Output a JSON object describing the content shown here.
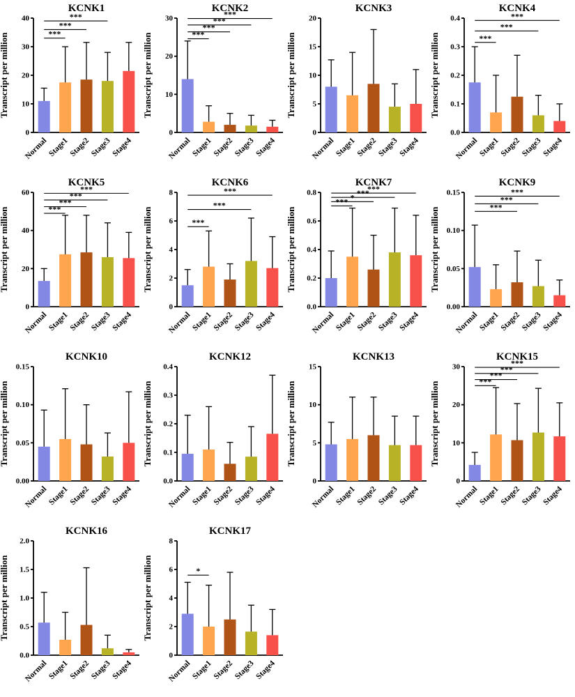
{
  "figure": {
    "ylabel": "Transcript per million",
    "categories": [
      "Normal",
      "Stage1",
      "Stage2",
      "Stage3",
      "Stage4"
    ],
    "bar_colors": [
      "#8388e4",
      "#ffa54e",
      "#b05317",
      "#b7b226",
      "#f8514a"
    ],
    "axis_color": "#000000",
    "significance_color": "#000000"
  },
  "chart_data": [
    {
      "type": "bar",
      "title": "KCNK1",
      "xlabel": "",
      "ylabel": "Transcript per million",
      "categories": [
        "Normal",
        "Stage1",
        "Stage2",
        "Stage3",
        "Stage4"
      ],
      "values": [
        11,
        17.5,
        18.5,
        18,
        21.5
      ],
      "error_tops": [
        15.5,
        30,
        31.5,
        28,
        31.5
      ],
      "ylim": [
        0,
        40
      ],
      "yticks": [
        0,
        10,
        20,
        30,
        40
      ],
      "ytick_labels": [
        "0",
        "10",
        "20",
        "30",
        "40"
      ],
      "significance": [
        {
          "from": 0,
          "to": 1,
          "label": "***",
          "y": 33
        },
        {
          "from": 0,
          "to": 2,
          "label": "***",
          "y": 36
        },
        {
          "from": 0,
          "to": 3,
          "label": "***",
          "y": 39
        }
      ]
    },
    {
      "type": "bar",
      "title": "KCNK2",
      "xlabel": "",
      "ylabel": "Transcript per million",
      "categories": [
        "Normal",
        "Stage1",
        "Stage2",
        "Stage3",
        "Stage4"
      ],
      "values": [
        14,
        2.8,
        2,
        1.8,
        1.5
      ],
      "error_tops": [
        24,
        7,
        5,
        4.5,
        3.2
      ],
      "ylim": [
        0,
        30
      ],
      "yticks": [
        0,
        10,
        20,
        30
      ],
      "ytick_labels": [
        "0",
        "10",
        "20",
        "30"
      ],
      "significance": [
        {
          "from": 0,
          "to": 1,
          "label": "***",
          "y": 24.6
        },
        {
          "from": 0,
          "to": 2,
          "label": "***",
          "y": 26.4
        },
        {
          "from": 0,
          "to": 3,
          "label": "***",
          "y": 28.2
        },
        {
          "from": 0,
          "to": 4,
          "label": "***",
          "y": 29.9
        }
      ]
    },
    {
      "type": "bar",
      "title": "KCNK3",
      "xlabel": "",
      "ylabel": "Transcript per million",
      "categories": [
        "Normal",
        "Stage1",
        "Stage2",
        "Stage3",
        "Stage4"
      ],
      "values": [
        8,
        6.5,
        8.5,
        4.5,
        5
      ],
      "error_tops": [
        12.7,
        14,
        18,
        8.5,
        11
      ],
      "ylim": [
        0,
        20
      ],
      "yticks": [
        0,
        5,
        10,
        15,
        20
      ],
      "ytick_labels": [
        "0",
        "5",
        "10",
        "15",
        "20"
      ],
      "significance": []
    },
    {
      "type": "bar",
      "title": "KCNK4",
      "xlabel": "",
      "ylabel": "Transcript per million",
      "categories": [
        "Normal",
        "Stage1",
        "Stage2",
        "Stage3",
        "Stage4"
      ],
      "values": [
        0.175,
        0.07,
        0.125,
        0.06,
        0.04
      ],
      "error_tops": [
        0.3,
        0.2,
        0.27,
        0.13,
        0.1
      ],
      "ylim": [
        0,
        0.4
      ],
      "yticks": [
        0,
        0.1,
        0.2,
        0.3,
        0.4
      ],
      "ytick_labels": [
        "0.0",
        "0.1",
        "0.2",
        "0.3",
        "0.4"
      ],
      "significance": [
        {
          "from": 0,
          "to": 1,
          "label": "***",
          "y": 0.315
        },
        {
          "from": 0,
          "to": 3,
          "label": "***",
          "y": 0.355
        },
        {
          "from": 0,
          "to": 4,
          "label": "***",
          "y": 0.392
        }
      ]
    },
    {
      "type": "bar",
      "title": "KCNK5",
      "xlabel": "",
      "ylabel": "Transcript per million",
      "categories": [
        "Normal",
        "Stage1",
        "Stage2",
        "Stage3",
        "Stage4"
      ],
      "values": [
        13.5,
        27.5,
        28.5,
        26,
        25.5
      ],
      "error_tops": [
        20,
        48,
        48,
        44,
        39
      ],
      "ylim": [
        0,
        60
      ],
      "yticks": [
        0,
        20,
        40,
        60
      ],
      "ytick_labels": [
        "0",
        "20",
        "40",
        "60"
      ],
      "significance": [
        {
          "from": 0,
          "to": 1,
          "label": "***",
          "y": 49
        },
        {
          "from": 0,
          "to": 2,
          "label": "***",
          "y": 52.5
        },
        {
          "from": 0,
          "to": 3,
          "label": "***",
          "y": 56
        },
        {
          "from": 0,
          "to": 4,
          "label": "***",
          "y": 59.5
        }
      ]
    },
    {
      "type": "bar",
      "title": "KCNK6",
      "xlabel": "",
      "ylabel": "Transcript per million",
      "categories": [
        "Normal",
        "Stage1",
        "Stage2",
        "Stage3",
        "Stage4"
      ],
      "values": [
        1.5,
        2.8,
        1.9,
        3.2,
        2.7
      ],
      "error_tops": [
        2.6,
        5.3,
        3.0,
        6.2,
        4.9
      ],
      "ylim": [
        0,
        8
      ],
      "yticks": [
        0,
        2,
        4,
        6,
        8
      ],
      "ytick_labels": [
        "0",
        "2",
        "4",
        "6",
        "8"
      ],
      "significance": [
        {
          "from": 0,
          "to": 1,
          "label": "***",
          "y": 5.6
        },
        {
          "from": 0,
          "to": 3,
          "label": "***",
          "y": 6.8
        },
        {
          "from": 0,
          "to": 4,
          "label": "***",
          "y": 7.8
        }
      ]
    },
    {
      "type": "bar",
      "title": "KCNK7",
      "xlabel": "",
      "ylabel": "Transcript per million",
      "categories": [
        "Normal",
        "Stage1",
        "Stage2",
        "Stage3",
        "Stage4"
      ],
      "values": [
        0.2,
        0.35,
        0.26,
        0.38,
        0.36
      ],
      "error_tops": [
        0.39,
        0.69,
        0.5,
        0.69,
        0.64
      ],
      "ylim": [
        0,
        0.8
      ],
      "yticks": [
        0,
        0.2,
        0.4,
        0.6,
        0.8
      ],
      "ytick_labels": [
        "0.0",
        "0.2",
        "0.4",
        "0.6",
        "0.8"
      ],
      "significance": [
        {
          "from": 0,
          "to": 1,
          "label": "***",
          "y": 0.705
        },
        {
          "from": 0,
          "to": 2,
          "label": "*",
          "y": 0.735
        },
        {
          "from": 0,
          "to": 3,
          "label": "***",
          "y": 0.765
        },
        {
          "from": 0,
          "to": 4,
          "label": "***",
          "y": 0.795
        }
      ]
    },
    {
      "type": "bar",
      "title": "KCNK9",
      "xlabel": "",
      "ylabel": "Transcript per million",
      "categories": [
        "Normal",
        "Stage1",
        "Stage2",
        "Stage3",
        "Stage4"
      ],
      "values": [
        0.052,
        0.023,
        0.032,
        0.027,
        0.015
      ],
      "error_tops": [
        0.107,
        0.055,
        0.073,
        0.061,
        0.035
      ],
      "ylim": [
        0,
        0.15
      ],
      "yticks": [
        0,
        0.05,
        0.1,
        0.15
      ],
      "ytick_labels": [
        "0.00",
        "0.05",
        "0.10",
        "0.15"
      ],
      "significance": [
        {
          "from": 0,
          "to": 2,
          "label": "***",
          "y": 0.125
        },
        {
          "from": 0,
          "to": 3,
          "label": "***",
          "y": 0.135
        },
        {
          "from": 0,
          "to": 4,
          "label": "***",
          "y": 0.145
        }
      ]
    },
    {
      "type": "bar",
      "title": "KCNK10",
      "xlabel": "",
      "ylabel": "Transcript per million",
      "categories": [
        "Normal",
        "Stage1",
        "Stage2",
        "Stage3",
        "Stage4"
      ],
      "values": [
        0.045,
        0.055,
        0.048,
        0.032,
        0.05
      ],
      "error_tops": [
        0.093,
        0.121,
        0.1,
        0.063,
        0.117
      ],
      "ylim": [
        0,
        0.15
      ],
      "yticks": [
        0,
        0.05,
        0.1,
        0.15
      ],
      "ytick_labels": [
        "0.00",
        "0.05",
        "0.10",
        "0.15"
      ],
      "significance": []
    },
    {
      "type": "bar",
      "title": "KCNK12",
      "xlabel": "",
      "ylabel": "Transcript per million",
      "categories": [
        "Normal",
        "Stage1",
        "Stage2",
        "Stage3",
        "Stage4"
      ],
      "values": [
        0.095,
        0.11,
        0.06,
        0.085,
        0.165
      ],
      "error_tops": [
        0.23,
        0.26,
        0.135,
        0.19,
        0.37
      ],
      "ylim": [
        0,
        0.4
      ],
      "yticks": [
        0,
        0.1,
        0.2,
        0.3,
        0.4
      ],
      "ytick_labels": [
        "0.0",
        "0.1",
        "0.2",
        "0.3",
        "0.4"
      ],
      "significance": []
    },
    {
      "type": "bar",
      "title": "KCNK13",
      "xlabel": "",
      "ylabel": "Transcript per million",
      "categories": [
        "Normal",
        "Stage1",
        "Stage2",
        "Stage3",
        "Stage4"
      ],
      "values": [
        4.8,
        5.5,
        6.0,
        4.7,
        4.7
      ],
      "error_tops": [
        7.7,
        11,
        11,
        8.5,
        8.5
      ],
      "ylim": [
        0,
        15
      ],
      "yticks": [
        0,
        5,
        10,
        15
      ],
      "ytick_labels": [
        "0",
        "5",
        "10",
        "15"
      ],
      "significance": []
    },
    {
      "type": "bar",
      "title": "KCNK15",
      "xlabel": "",
      "ylabel": "Transcript per million",
      "categories": [
        "Normal",
        "Stage1",
        "Stage2",
        "Stage3",
        "Stage4"
      ],
      "values": [
        4.2,
        12.2,
        10.7,
        12.7,
        11.7
      ],
      "error_tops": [
        7.5,
        24.5,
        20.3,
        24.3,
        20.5
      ],
      "ylim": [
        0,
        30
      ],
      "yticks": [
        0,
        10,
        20,
        30
      ],
      "ytick_labels": [
        "0",
        "10",
        "20",
        "30"
      ],
      "significance": [
        {
          "from": 0,
          "to": 1,
          "label": "***",
          "y": 25
        },
        {
          "from": 0,
          "to": 2,
          "label": "***",
          "y": 26.6
        },
        {
          "from": 0,
          "to": 3,
          "label": "***",
          "y": 28.2
        },
        {
          "from": 0,
          "to": 4,
          "label": "***",
          "y": 29.8
        }
      ]
    },
    {
      "type": "bar",
      "title": "KCNK16",
      "xlabel": "",
      "ylabel": "Transcript per million",
      "categories": [
        "Normal",
        "Stage1",
        "Stage2",
        "Stage3",
        "Stage4"
      ],
      "values": [
        0.57,
        0.27,
        0.53,
        0.12,
        0.05
      ],
      "error_tops": [
        1.1,
        0.75,
        1.53,
        0.35,
        0.1
      ],
      "ylim": [
        0,
        2.0
      ],
      "yticks": [
        0,
        0.5,
        1.0,
        1.5,
        2.0
      ],
      "ytick_labels": [
        "0.0",
        "0.5",
        "1.0",
        "1.5",
        "2.0"
      ],
      "significance": []
    },
    {
      "type": "bar",
      "title": "KCNK17",
      "xlabel": "",
      "ylabel": "Transcript per million",
      "categories": [
        "Normal",
        "Stage1",
        "Stage2",
        "Stage3",
        "Stage4"
      ],
      "values": [
        2.9,
        2.0,
        2.5,
        1.65,
        1.4
      ],
      "error_tops": [
        5.1,
        4.9,
        5.8,
        3.5,
        3.2
      ],
      "ylim": [
        0,
        8
      ],
      "yticks": [
        0,
        2,
        4,
        6,
        8
      ],
      "ytick_labels": [
        "0",
        "2",
        "4",
        "6",
        "8"
      ],
      "significance": [
        {
          "from": 0,
          "to": 1,
          "label": "*",
          "y": 5.6
        }
      ]
    }
  ]
}
